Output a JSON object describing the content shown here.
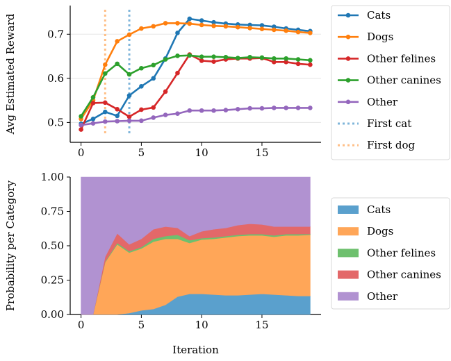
{
  "chart_data": [
    {
      "type": "line",
      "xlabel": "",
      "ylabel": "Avg Estimated Reward",
      "xlim": [
        -0.9,
        19.9
      ],
      "ylim": [
        0.455,
        0.765
      ],
      "xticks": [
        0,
        5,
        10,
        15
      ],
      "yticks": [
        0.5,
        0.6,
        0.7
      ],
      "ytick_labels": [
        "0.5",
        "0.6",
        "0.7"
      ],
      "grid": "horizontal",
      "legend_position": "right",
      "x": [
        0,
        1,
        2,
        3,
        4,
        5,
        6,
        7,
        8,
        9,
        10,
        11,
        12,
        13,
        14,
        15,
        16,
        17,
        18,
        19
      ],
      "series": [
        {
          "name": "Cats",
          "color": "#1f77b4",
          "values": [
            0.497,
            0.508,
            0.524,
            0.515,
            0.561,
            0.582,
            0.6,
            0.645,
            0.703,
            0.735,
            0.731,
            0.727,
            0.724,
            0.722,
            0.721,
            0.72,
            0.717,
            0.713,
            0.71,
            0.707
          ]
        },
        {
          "name": "Dogs",
          "color": "#ff7f0e",
          "values": [
            0.508,
            0.55,
            0.631,
            0.684,
            0.699,
            0.713,
            0.718,
            0.725,
            0.725,
            0.724,
            0.721,
            0.719,
            0.718,
            0.716,
            0.714,
            0.712,
            0.71,
            0.708,
            0.705,
            0.703
          ]
        },
        {
          "name": "Other felines",
          "color": "#d62728",
          "values": [
            0.484,
            0.544,
            0.545,
            0.53,
            0.513,
            0.529,
            0.534,
            0.57,
            0.612,
            0.654,
            0.64,
            0.638,
            0.643,
            0.645,
            0.645,
            0.646,
            0.637,
            0.637,
            0.633,
            0.631
          ]
        },
        {
          "name": "Other canines",
          "color": "#2ca02c",
          "values": [
            0.514,
            0.557,
            0.611,
            0.633,
            0.609,
            0.623,
            0.63,
            0.643,
            0.651,
            0.652,
            0.649,
            0.649,
            0.648,
            0.646,
            0.648,
            0.647,
            0.645,
            0.645,
            0.643,
            0.641
          ]
        },
        {
          "name": "Other",
          "color": "#9467bd",
          "values": [
            0.494,
            0.498,
            0.502,
            0.503,
            0.504,
            0.504,
            0.511,
            0.517,
            0.52,
            0.527,
            0.527,
            0.527,
            0.528,
            0.53,
            0.532,
            0.532,
            0.533,
            0.533,
            0.533,
            0.533
          ]
        }
      ],
      "vlines": [
        {
          "name": "First cat",
          "x": 4,
          "color": "#7fb5da"
        },
        {
          "name": "First dog",
          "x": 2,
          "color": "#ffbf86"
        }
      ]
    },
    {
      "type": "area",
      "stacked": true,
      "xlabel": "Iteration",
      "ylabel": "Probability per Category",
      "xlim": [
        -0.9,
        19.9
      ],
      "ylim": [
        0,
        1
      ],
      "xticks": [
        0,
        5,
        10,
        15
      ],
      "yticks": [
        0,
        0.25,
        0.5,
        0.75,
        1
      ],
      "ytick_labels": [
        "0.00",
        "0.25",
        "0.50",
        "0.75",
        "1.00"
      ],
      "legend_position": "right",
      "x": [
        0,
        1,
        2,
        3,
        4,
        5,
        6,
        7,
        8,
        9,
        10,
        11,
        12,
        13,
        14,
        15,
        16,
        17,
        18,
        19
      ],
      "series": [
        {
          "name": "Cats",
          "color": "#5aa0cd",
          "values": [
            0,
            0,
            0,
            0,
            0.01,
            0.03,
            0.04,
            0.07,
            0.13,
            0.15,
            0.15,
            0.145,
            0.14,
            0.14,
            0.145,
            0.15,
            0.145,
            0.14,
            0.135,
            0.135
          ]
        },
        {
          "name": "Dogs",
          "color": "#ffa658",
          "values": [
            0,
            0,
            0.38,
            0.51,
            0.44,
            0.45,
            0.49,
            0.48,
            0.42,
            0.37,
            0.395,
            0.405,
            0.42,
            0.43,
            0.43,
            0.425,
            0.42,
            0.435,
            0.44,
            0.445
          ]
        },
        {
          "name": "Other felines",
          "color": "#6ec06e",
          "values": [
            0,
            0,
            0.005,
            0.01,
            0.01,
            0.01,
            0.02,
            0.02,
            0.03,
            0.02,
            0.01,
            0.01,
            0.01,
            0.01,
            0.01,
            0.01,
            0.01,
            0.01,
            0.01,
            0.005
          ]
        },
        {
          "name": "Other canines",
          "color": "#e36869",
          "values": [
            0,
            0,
            0.035,
            0.07,
            0.05,
            0.06,
            0.07,
            0.07,
            0.05,
            0.03,
            0.05,
            0.06,
            0.06,
            0.07,
            0.075,
            0.07,
            0.065,
            0.055,
            0.055,
            0.055
          ]
        },
        {
          "name": "Other",
          "color": "#b192d1",
          "values": [
            1,
            1,
            0.58,
            0.41,
            0.49,
            0.45,
            0.38,
            0.36,
            0.37,
            0.43,
            0.395,
            0.38,
            0.37,
            0.35,
            0.34,
            0.345,
            0.36,
            0.36,
            0.36,
            0.36
          ]
        }
      ]
    }
  ]
}
